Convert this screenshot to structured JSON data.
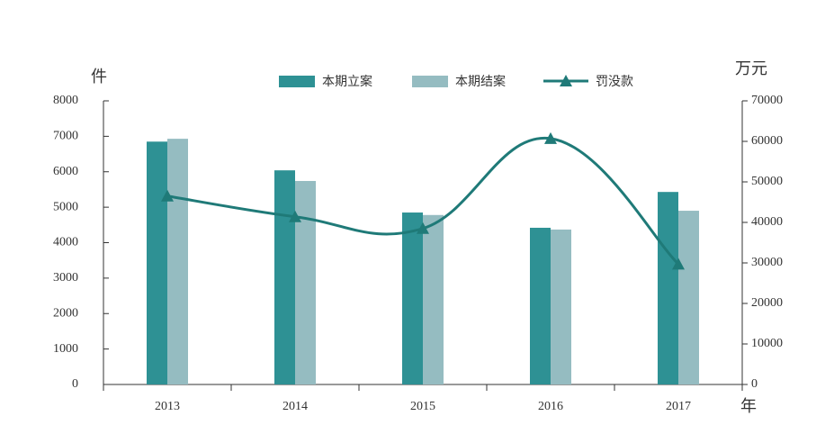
{
  "chart_data": {
    "type": "bar-line",
    "y_label": "件",
    "y2_label": "万元",
    "x_label": "年",
    "categories": [
      "2013",
      "2014",
      "2015",
      "2016",
      "2017"
    ],
    "series": [
      {
        "name": "本期立案",
        "type": "bar",
        "color": "#2e9194",
        "values": [
          6850,
          6040,
          4850,
          4420,
          5430
        ]
      },
      {
        "name": "本期结案",
        "type": "bar",
        "color": "#95bcc1",
        "values": [
          6930,
          5740,
          4780,
          4370,
          4900
        ]
      },
      {
        "name": "罚没款",
        "type": "line",
        "axis": "y2",
        "color": "#1f7a78",
        "values": [
          46500,
          41400,
          38500,
          60700,
          29700
        ]
      }
    ],
    "ylim": [
      0,
      8000
    ],
    "yticks": [
      0,
      1000,
      2000,
      3000,
      4000,
      5000,
      6000,
      7000,
      8000
    ],
    "y2lim": [
      0,
      70000
    ],
    "y2ticks": [
      0,
      10000,
      20000,
      30000,
      40000,
      50000,
      60000,
      70000
    ],
    "grid": false
  }
}
